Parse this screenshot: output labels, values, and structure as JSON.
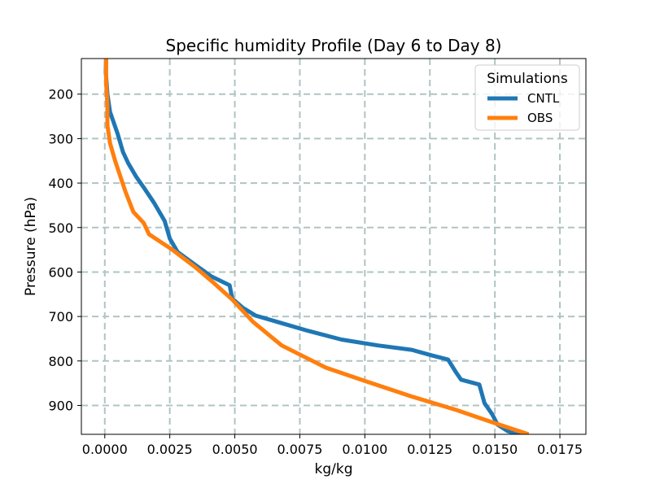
{
  "chart_data": {
    "type": "line",
    "title": "Specific humidity Profile (Day 6 to Day 8)",
    "xlabel": "kg/kg",
    "ylabel": "Pressure (hPa)",
    "xlim": [
      -0.0009,
      0.0185
    ],
    "ylim": [
      965,
      120
    ],
    "y_inverted": true,
    "grid": true,
    "xticks": [
      0.0,
      0.0025,
      0.005,
      0.0075,
      0.01,
      0.0125,
      0.015,
      0.0175
    ],
    "xtick_labels": [
      "0.0000",
      "0.0025",
      "0.0050",
      "0.0075",
      "0.0100",
      "0.0125",
      "0.0150",
      "0.0175"
    ],
    "yticks": [
      200,
      300,
      400,
      500,
      600,
      700,
      800,
      900
    ],
    "ytick_labels": [
      "200",
      "300",
      "400",
      "500",
      "600",
      "700",
      "800",
      "900"
    ],
    "legend": {
      "title": "Simulations",
      "placement": "upper right"
    },
    "series": [
      {
        "name": "CNTL",
        "color": "#1f77b4",
        "points": [
          [
            5e-05,
            120
          ],
          [
            4e-05,
            150
          ],
          [
            0.0001,
            200
          ],
          [
            0.0002,
            240
          ],
          [
            0.0005,
            290
          ],
          [
            0.0007,
            330
          ],
          [
            0.0009,
            355
          ],
          [
            0.0012,
            385
          ],
          [
            0.0015,
            410
          ],
          [
            0.0019,
            445
          ],
          [
            0.0023,
            485
          ],
          [
            0.0025,
            525
          ],
          [
            0.0028,
            555
          ],
          [
            0.0035,
            585
          ],
          [
            0.0041,
            610
          ],
          [
            0.0048,
            630
          ],
          [
            0.0049,
            660
          ],
          [
            0.0053,
            680
          ],
          [
            0.0058,
            698
          ],
          [
            0.0068,
            715
          ],
          [
            0.0078,
            732
          ],
          [
            0.0091,
            752
          ],
          [
            0.0105,
            765
          ],
          [
            0.0118,
            775
          ],
          [
            0.0126,
            788
          ],
          [
            0.0132,
            797
          ],
          [
            0.0135,
            825
          ],
          [
            0.0137,
            842
          ],
          [
            0.0144,
            853
          ],
          [
            0.0146,
            895
          ],
          [
            0.0149,
            920
          ],
          [
            0.0151,
            943
          ],
          [
            0.0155,
            958
          ],
          [
            0.016,
            965
          ]
        ]
      },
      {
        "name": "OBS",
        "color": "#ff7f0e",
        "points": [
          [
            5e-05,
            120
          ],
          [
            5e-05,
            175
          ],
          [
            0.0001,
            225
          ],
          [
            0.0001,
            270
          ],
          [
            0.0002,
            310
          ],
          [
            0.0004,
            350
          ],
          [
            0.0006,
            385
          ],
          [
            0.0008,
            420
          ],
          [
            0.0011,
            465
          ],
          [
            0.0015,
            490
          ],
          [
            0.0017,
            515
          ],
          [
            0.0026,
            550
          ],
          [
            0.0035,
            590
          ],
          [
            0.0042,
            625
          ],
          [
            0.0049,
            662
          ],
          [
            0.0057,
            712
          ],
          [
            0.0068,
            765
          ],
          [
            0.0085,
            815
          ],
          [
            0.01,
            845
          ],
          [
            0.0118,
            880
          ],
          [
            0.0135,
            910
          ],
          [
            0.015,
            940
          ],
          [
            0.0163,
            965
          ]
        ]
      }
    ]
  }
}
